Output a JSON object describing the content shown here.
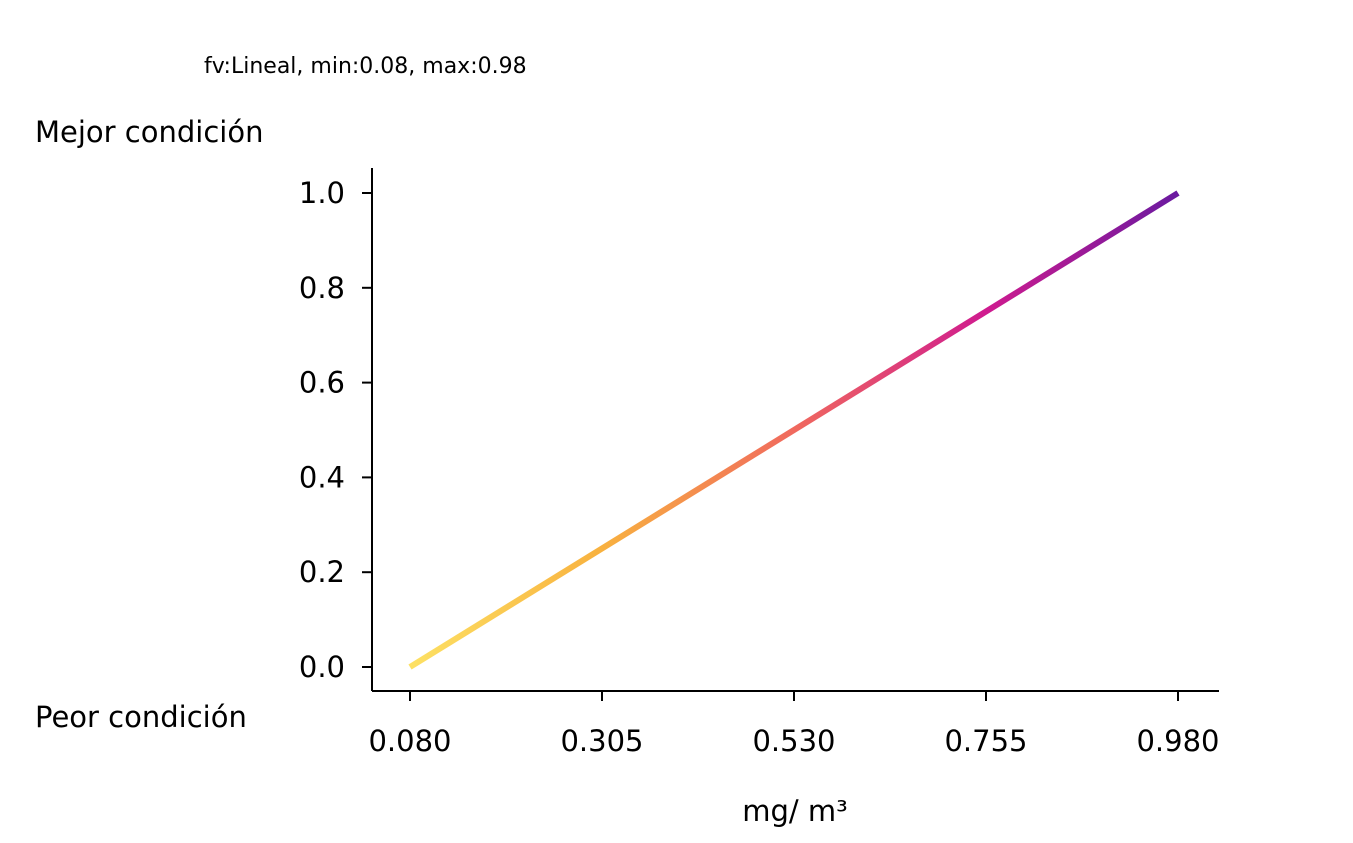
{
  "chart_data": {
    "type": "line",
    "title": "fv:Lineal, min:0.08, max:0.98",
    "best_label": "Mejor condición",
    "worst_label": "Peor condición",
    "xlabel": "mg/ m³",
    "ylabel": "",
    "xlim": [
      0.08,
      0.98
    ],
    "ylim": [
      0.0,
      1.0
    ],
    "x_ticks": [
      "0.080",
      "0.305",
      "0.530",
      "0.755",
      "0.980"
    ],
    "y_ticks": [
      "0.0",
      "0.2",
      "0.4",
      "0.6",
      "0.8",
      "1.0"
    ],
    "grid": false,
    "colormap": "plasma (reversed)",
    "line_color_start": "#fde164",
    "line_color_end": "#6a1aa0",
    "series": [
      {
        "x": [
          0.08,
          0.98
        ],
        "y": [
          0.0,
          1.0
        ]
      }
    ]
  }
}
